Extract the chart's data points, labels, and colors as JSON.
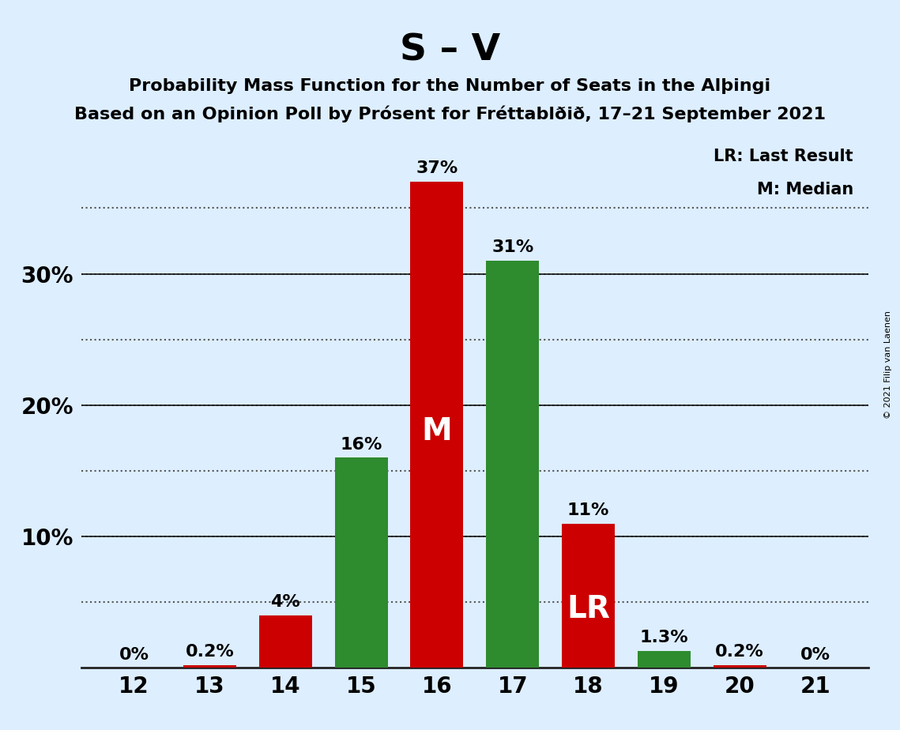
{
  "title_main": "S – V",
  "title_sub1": "Probability Mass Function for the Number of Seats in the Alþingi",
  "title_sub2": "Based on an Opinion Poll by Prósent for Fréttablðið, 17–21 September 2021",
  "copyright_text": "© 2021 Filip van Laenen",
  "seats": [
    12,
    13,
    14,
    15,
    16,
    17,
    18,
    19,
    20,
    21
  ],
  "values": [
    0.0,
    0.2,
    4.0,
    16.0,
    37.0,
    31.0,
    11.0,
    1.3,
    0.2,
    0.0
  ],
  "colors": [
    "#cc0000",
    "#cc0000",
    "#cc0000",
    "#2e8b2e",
    "#cc0000",
    "#2e8b2e",
    "#cc0000",
    "#2e8b2e",
    "#cc0000",
    "#2e8b2e"
  ],
  "bar_labels": [
    "0%",
    "0.2%",
    "4%",
    "16%",
    "37%",
    "31%",
    "11%",
    "1.3%",
    "0.2%",
    "0%"
  ],
  "median_seat": 16,
  "lr_seat": 18,
  "ylim": [
    0,
    40
  ],
  "background_color": "#ddeeff",
  "bar_color_red": "#cc0000",
  "bar_color_green": "#2e8b2e",
  "legend_lr": "LR: Last Result",
  "legend_m": "M: Median"
}
